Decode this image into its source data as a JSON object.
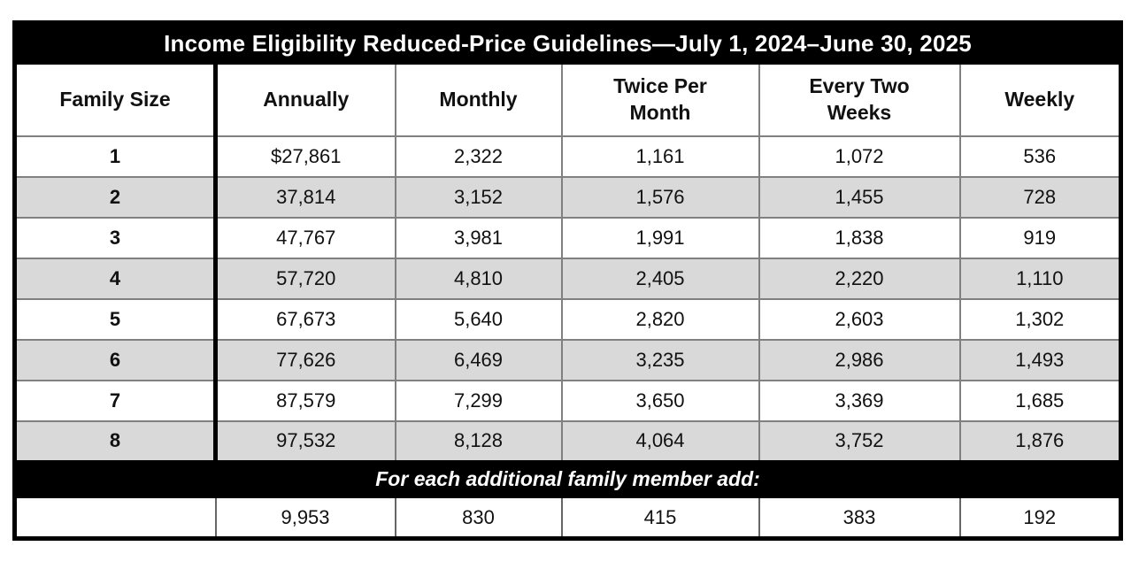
{
  "table": {
    "title": "Income Eligibility Reduced-Price Guidelines—July 1, 2024–June 30, 2025",
    "columns": [
      "Family Size",
      "Annually",
      "Monthly",
      "Twice Per\nMonth",
      "Every Two\nWeeks",
      "Weekly"
    ],
    "rows": [
      {
        "family_size": "1",
        "values": [
          "$27,861",
          "2,322",
          "1,161",
          "1,072",
          "536"
        ]
      },
      {
        "family_size": "2",
        "values": [
          "37,814",
          "3,152",
          "1,576",
          "1,455",
          "728"
        ]
      },
      {
        "family_size": "3",
        "values": [
          "47,767",
          "3,981",
          "1,991",
          "1,838",
          "919"
        ]
      },
      {
        "family_size": "4",
        "values": [
          "57,720",
          "4,810",
          "2,405",
          "2,220",
          "1,110"
        ]
      },
      {
        "family_size": "5",
        "values": [
          "67,673",
          "5,640",
          "2,820",
          "2,603",
          "1,302"
        ]
      },
      {
        "family_size": "6",
        "values": [
          "77,626",
          "6,469",
          "3,235",
          "2,986",
          "1,493"
        ]
      },
      {
        "family_size": "7",
        "values": [
          "87,579",
          "7,299",
          "3,650",
          "3,369",
          "1,685"
        ]
      },
      {
        "family_size": "8",
        "values": [
          "97,532",
          "8,128",
          "4,064",
          "3,752",
          "1,876"
        ]
      }
    ],
    "additional_member": {
      "label": "For each additional family member add:",
      "values": [
        "9,953",
        "830",
        "415",
        "383",
        "192"
      ]
    }
  },
  "colors": {
    "title_bar_bg": "#000000",
    "title_bar_text": "#ffffff",
    "shaded_row_bg": "#d9d9d9",
    "grid_line": "#808080",
    "outer_border": "#000000"
  }
}
